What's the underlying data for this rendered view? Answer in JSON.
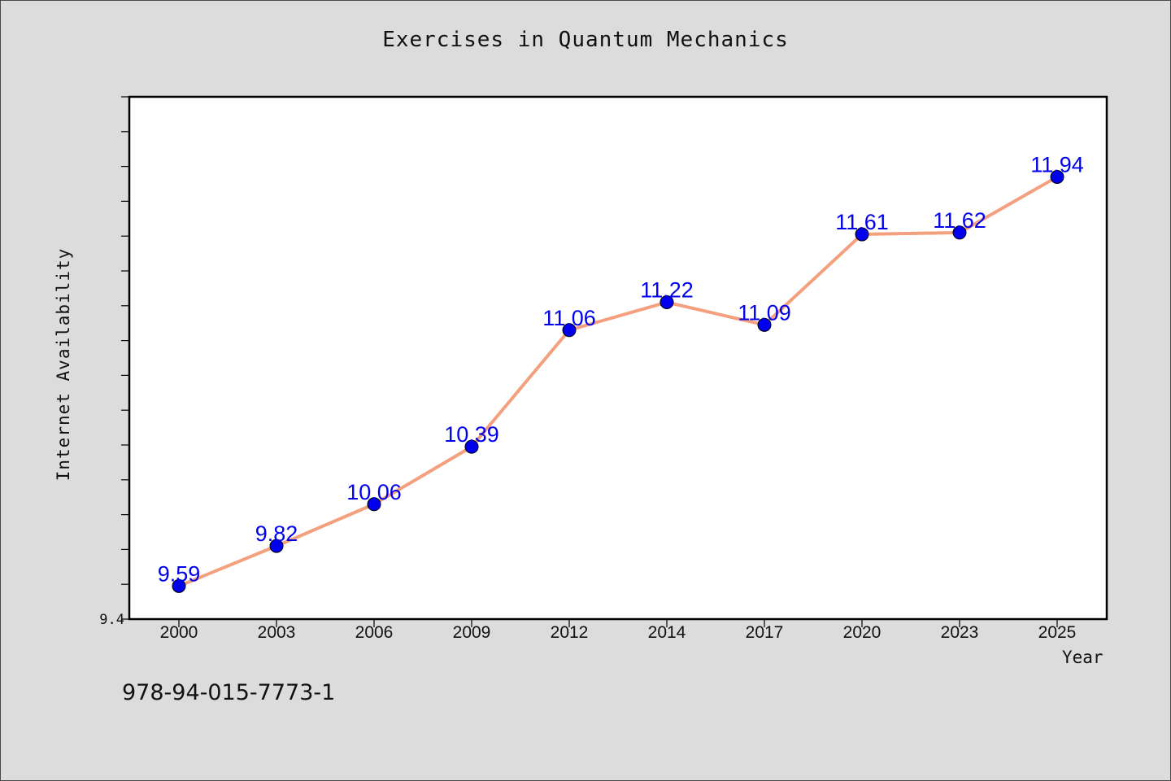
{
  "chart_data": {
    "type": "line",
    "title": "Exercises in Quantum Mechanics",
    "xlabel": "Year",
    "ylabel": "Internet Availability",
    "categories": [
      "2000",
      "2003",
      "2006",
      "2009",
      "2012",
      "2014",
      "2017",
      "2020",
      "2023",
      "2025"
    ],
    "series": [
      {
        "values": [
          9.59,
          9.82,
          10.06,
          10.39,
          11.06,
          11.22,
          11.09,
          11.61,
          11.62,
          11.94
        ]
      }
    ],
    "data_labels": [
      "9.59",
      "9.82",
      "10.06",
      "10.39",
      "11.06",
      "11.22",
      "11.09",
      "11.61",
      "11.62",
      "11.94"
    ],
    "y_tick_label": "9.4",
    "ylim": [
      9.4,
      12.4
    ],
    "grid": false,
    "colors": {
      "line": "#f4a07f",
      "marker": "#0000ee",
      "label": "#0000ee",
      "background": "#dcdcdc",
      "plot_area": "#ffffff"
    }
  },
  "footer_text": "978-94-015-7773-1"
}
